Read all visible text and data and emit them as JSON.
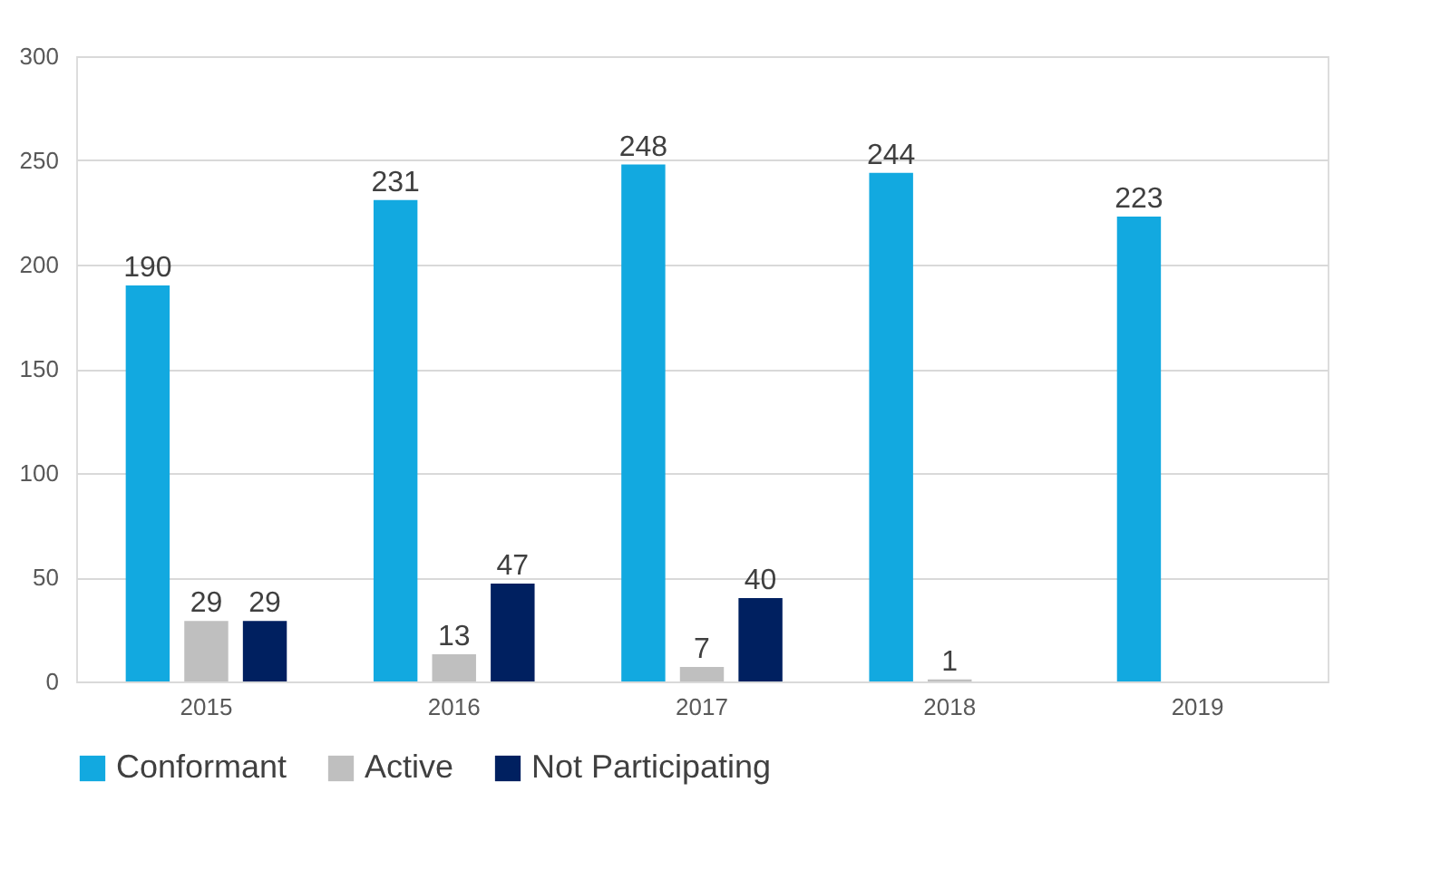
{
  "chart_data": {
    "type": "bar",
    "categories": [
      "2015",
      "2016",
      "2017",
      "2018",
      "2019"
    ],
    "series": [
      {
        "name": "Conformant",
        "color": "#12a9e0",
        "values": [
          190,
          231,
          248,
          244,
          223
        ]
      },
      {
        "name": "Active",
        "color": "#bfbfbf",
        "values": [
          29,
          13,
          7,
          1,
          null
        ]
      },
      {
        "name": "Not Participating",
        "color": "#002060",
        "values": [
          29,
          47,
          40,
          null,
          null
        ]
      }
    ],
    "ylim": [
      0,
      300
    ],
    "yticks": [
      0,
      50,
      100,
      150,
      200,
      250,
      300
    ],
    "grid": "y",
    "legend": "bottom",
    "data_labels": true
  }
}
